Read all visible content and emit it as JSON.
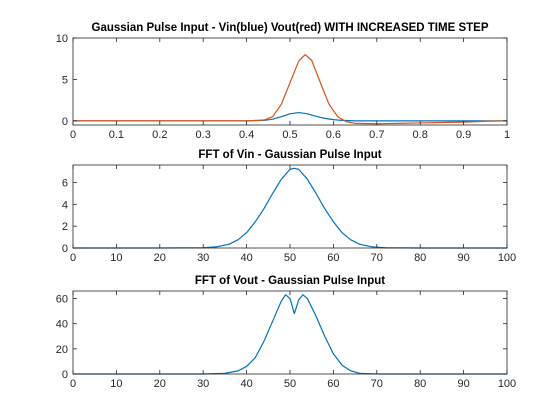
{
  "chart_data": [
    {
      "type": "line",
      "title": "Gaussian Pulse Input - Vin(blue) Vout(red) WITH INCREASED TIME STEP",
      "xlim": [
        0,
        1
      ],
      "ylim": [
        -0.5,
        10
      ],
      "xticks": [
        "0",
        "0.1",
        "0.2",
        "0.3",
        "0.4",
        "0.5",
        "0.6",
        "0.7",
        "0.8",
        "0.9",
        "1"
      ],
      "xtick_values": [
        0,
        0.1,
        0.2,
        0.3,
        0.4,
        0.5,
        0.6,
        0.7,
        0.8,
        0.9,
        1
      ],
      "yticks": [
        "0",
        "5",
        "10"
      ],
      "ytick_values": [
        0,
        5,
        10
      ],
      "grid": false,
      "series": [
        {
          "color": "#0072BD",
          "x": [
            0,
            0.1,
            0.2,
            0.3,
            0.4,
            0.44,
            0.46,
            0.48,
            0.5,
            0.52,
            0.54,
            0.56,
            0.58,
            0.6,
            0.62,
            0.65,
            0.7,
            0.8,
            0.9,
            1
          ],
          "y": [
            0,
            0,
            0,
            0,
            0,
            0.05,
            0.2,
            0.5,
            0.85,
            1.0,
            0.85,
            0.55,
            0.3,
            0.15,
            0.06,
            0,
            0,
            0,
            0,
            0
          ]
        },
        {
          "color": "#D95319",
          "x": [
            0,
            0.1,
            0.2,
            0.3,
            0.4,
            0.44,
            0.46,
            0.48,
            0.5,
            0.52,
            0.535,
            0.55,
            0.57,
            0.59,
            0.61,
            0.63,
            0.65,
            0.7,
            0.75,
            0.8,
            0.85,
            0.9,
            0.95,
            1
          ],
          "y": [
            0,
            0,
            0,
            0,
            0,
            0.1,
            0.5,
            2.0,
            4.6,
            7.2,
            8.0,
            7.3,
            4.6,
            2.0,
            0.5,
            -0.1,
            -0.3,
            -0.35,
            -0.3,
            -0.25,
            -0.2,
            -0.15,
            -0.05,
            0
          ]
        }
      ]
    },
    {
      "type": "line",
      "title": "FFT of Vin - Gaussian Pulse Input",
      "xlim": [
        0,
        100
      ],
      "ylim": [
        0,
        7.6
      ],
      "xticks": [
        "0",
        "10",
        "20",
        "30",
        "40",
        "50",
        "60",
        "70",
        "80",
        "90",
        "100"
      ],
      "xtick_values": [
        0,
        10,
        20,
        30,
        40,
        50,
        60,
        70,
        80,
        90,
        100
      ],
      "yticks": [
        "0",
        "2",
        "4",
        "6"
      ],
      "ytick_values": [
        0,
        2,
        4,
        6
      ],
      "grid": false,
      "series": [
        {
          "color": "#0072BD",
          "x": [
            0,
            10,
            20,
            30,
            33,
            36,
            38,
            40,
            42,
            44,
            46,
            48,
            50,
            51,
            52,
            54,
            56,
            58,
            60,
            62,
            64,
            66,
            69,
            72,
            80,
            90,
            100
          ],
          "y": [
            0,
            0,
            0,
            0.02,
            0.1,
            0.35,
            0.75,
            1.4,
            2.4,
            3.6,
            5.0,
            6.3,
            7.2,
            7.3,
            7.2,
            6.3,
            5.0,
            3.6,
            2.4,
            1.4,
            0.75,
            0.35,
            0.1,
            0.02,
            0,
            0,
            0
          ]
        }
      ]
    },
    {
      "type": "line",
      "title": "FFT of Vout - Gaussian Pulse Input",
      "xlim": [
        0,
        100
      ],
      "ylim": [
        0,
        66
      ],
      "xticks": [
        "0",
        "10",
        "20",
        "30",
        "40",
        "50",
        "60",
        "70",
        "80",
        "90",
        "100"
      ],
      "xtick_values": [
        0,
        10,
        20,
        30,
        40,
        50,
        60,
        70,
        80,
        90,
        100
      ],
      "yticks": [
        "0",
        "20",
        "40",
        "60"
      ],
      "ytick_values": [
        0,
        20,
        40,
        60
      ],
      "grid": false,
      "series": [
        {
          "color": "#0072BD",
          "x": [
            0,
            10,
            20,
            30,
            35,
            38,
            40,
            42,
            44,
            46,
            48,
            49,
            50,
            51,
            52,
            53,
            54,
            56,
            58,
            60,
            62,
            64,
            66,
            70,
            80,
            90,
            100
          ],
          "y": [
            0,
            0,
            0,
            0,
            0.5,
            2.5,
            6,
            13,
            26,
            42,
            58,
            63,
            60,
            48,
            59,
            63,
            60,
            46,
            30,
            16,
            7,
            2.5,
            0.5,
            0,
            0,
            0,
            0
          ]
        }
      ]
    }
  ]
}
